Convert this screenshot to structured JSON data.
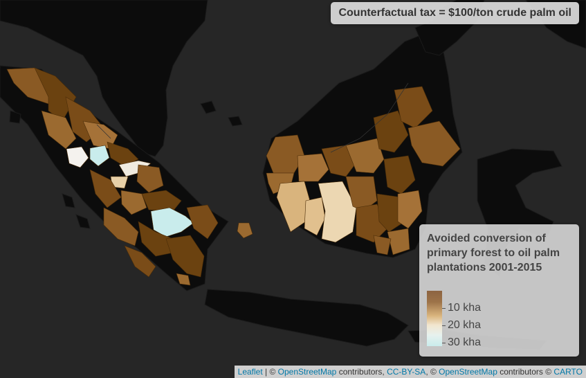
{
  "map": {
    "title": "Counterfactual tax = $100/ton crude palm oil"
  },
  "legend": {
    "title_lines": [
      "Avoided conversion of",
      "primary forest to oil palm",
      "plantations 2001-2015"
    ],
    "labels": [
      "10 kha",
      "20 kha",
      "30 kha"
    ]
  },
  "attribution": {
    "leaflet": "Leaflet",
    "sep1": " | © ",
    "osm1": "OpenStreetMap",
    "contrib1": " contributors, ",
    "ccbysa": "CC-BY-SA",
    "sep2": ", © ",
    "osm2": "OpenStreetMap",
    "contrib2": " contributors © ",
    "carto": "CARTO"
  },
  "colors": {
    "ocean": "#262626",
    "land": "#0c0c0c",
    "region_dark": "#6b4210",
    "region_mid": "#8a5a24",
    "region_light": "#c49a62",
    "region_pale": "#e8d1a8",
    "region_white": "#f4f2ee",
    "region_cyan": "#c9ecec"
  }
}
